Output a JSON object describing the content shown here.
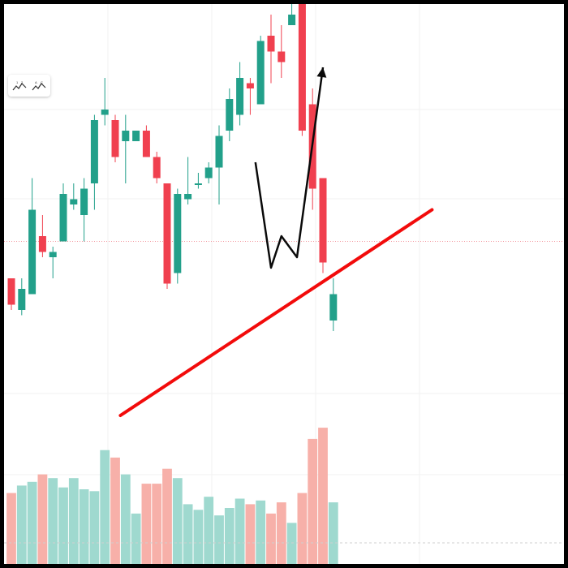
{
  "chart_data": {
    "type": "candlestick",
    "price_range": [
      0,
      100
    ],
    "volume_range": [
      0,
      100
    ],
    "reference_level": 55,
    "candles": [
      {
        "o": 48,
        "c": 43,
        "h": 48,
        "l": 42,
        "v": 38
      },
      {
        "o": 42,
        "c": 46,
        "h": 48,
        "l": 41,
        "v": 42
      },
      {
        "o": 45,
        "c": 61,
        "h": 67,
        "l": 45,
        "v": 44
      },
      {
        "o": 56,
        "c": 53,
        "h": 60,
        "l": 52,
        "v": 48
      },
      {
        "o": 52,
        "c": 53,
        "h": 54,
        "l": 48,
        "v": 46
      },
      {
        "o": 55,
        "c": 64,
        "h": 66,
        "l": 55,
        "v": 41
      },
      {
        "o": 62,
        "c": 63,
        "h": 66,
        "l": 61,
        "v": 46
      },
      {
        "o": 60,
        "c": 65,
        "h": 67,
        "l": 55,
        "v": 40
      },
      {
        "o": 66,
        "c": 78,
        "h": 79,
        "l": 61,
        "v": 39
      },
      {
        "o": 79,
        "c": 80,
        "h": 86,
        "l": 77,
        "v": 61
      },
      {
        "o": 78,
        "c": 71,
        "h": 79,
        "l": 70,
        "v": 57
      },
      {
        "o": 74,
        "c": 76,
        "h": 79,
        "l": 66,
        "v": 48
      },
      {
        "o": 74,
        "c": 76,
        "h": 76,
        "l": 74,
        "v": 27
      },
      {
        "o": 76,
        "c": 71,
        "h": 77,
        "l": 71,
        "v": 43
      },
      {
        "o": 71,
        "c": 67,
        "h": 72,
        "l": 66,
        "v": 43
      },
      {
        "o": 66,
        "c": 47,
        "h": 66,
        "l": 46,
        "v": 51
      },
      {
        "o": 49,
        "c": 64,
        "h": 65,
        "l": 47,
        "v": 46
      },
      {
        "o": 63,
        "c": 64,
        "h": 71,
        "l": 62,
        "v": 32
      },
      {
        "o": 66,
        "c": 66,
        "h": 68,
        "l": 65,
        "v": 29
      },
      {
        "o": 67,
        "c": 69,
        "h": 70,
        "l": 66,
        "v": 36
      },
      {
        "o": 69,
        "c": 75,
        "h": 77,
        "l": 62,
        "v": 26
      },
      {
        "o": 76,
        "c": 82,
        "h": 84,
        "l": 74,
        "v": 30
      },
      {
        "o": 79,
        "c": 86,
        "h": 89,
        "l": 77,
        "v": 35
      },
      {
        "o": 85,
        "c": 84,
        "h": 86,
        "l": 79,
        "v": 32
      },
      {
        "o": 81,
        "c": 93,
        "h": 94,
        "l": 81,
        "v": 34
      },
      {
        "o": 94,
        "c": 91,
        "h": 98,
        "l": 85,
        "v": 27
      },
      {
        "o": 91,
        "c": 89,
        "h": 96,
        "l": 86,
        "v": 33
      },
      {
        "o": 96,
        "c": 98,
        "h": 103,
        "l": 96,
        "v": 22
      },
      {
        "o": 101,
        "c": 76,
        "h": 101,
        "l": 75,
        "v": 38
      },
      {
        "o": 81,
        "c": 65,
        "h": 84,
        "l": 61,
        "v": 67
      },
      {
        "o": 67,
        "c": 51,
        "h": 67,
        "l": 49,
        "v": 73
      },
      {
        "o": 40,
        "c": 45,
        "h": 48,
        "l": 38,
        "v": 33
      }
    ],
    "drawings": {
      "trendline": {
        "from": [
          10.5,
          22
        ],
        "to": [
          40.5,
          61
        ],
        "color": "#f20b0b"
      },
      "arrow_path": [
        [
          23.5,
          70
        ],
        [
          25,
          50
        ],
        [
          26,
          56
        ],
        [
          27.5,
          52
        ],
        [
          30,
          88
        ]
      ],
      "arrow_color": "#0a0a0a"
    },
    "colors": {
      "up": "#22a08a",
      "down": "#f0404f",
      "up_volume": "#9fd9cf",
      "down_volume": "#f7b0a9",
      "reference": "#f49aa0",
      "grid": "#f2f2f2"
    }
  },
  "toolbar": {
    "tools": [
      {
        "icon": "wave-12-tool-icon"
      },
      {
        "icon": "wave-abc-tool-icon"
      }
    ]
  }
}
